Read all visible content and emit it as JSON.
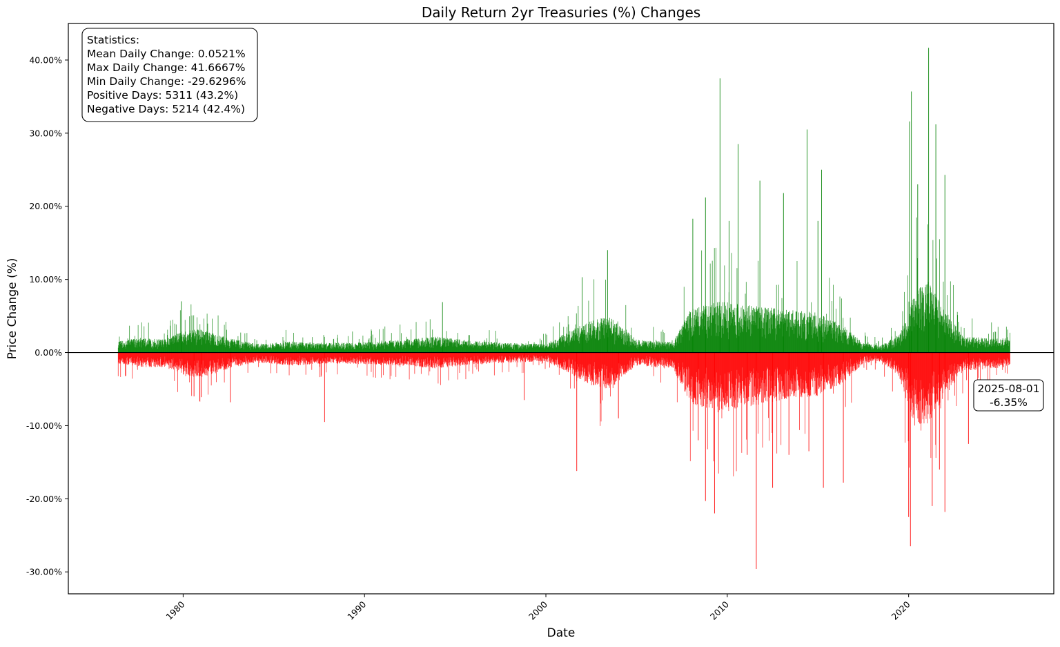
{
  "chart_data": {
    "type": "bar",
    "title": "Daily Return 2yr Treasuries (%) Changes",
    "xlabel": "Date",
    "ylabel": "Price Change (%)",
    "x_range": [
      "1973-09-01",
      "2028-01-01"
    ],
    "ylim": [
      -33.0,
      45.0
    ],
    "x_ticks": [
      "1980",
      "1990",
      "2000",
      "2010",
      "2020"
    ],
    "y_ticks": [
      {
        "value": 40,
        "label": "40.00%"
      },
      {
        "value": 30,
        "label": "30.00%"
      },
      {
        "value": 20,
        "label": "20.00%"
      },
      {
        "value": 10,
        "label": "10.00%"
      },
      {
        "value": 0,
        "label": "0.00%"
      },
      {
        "value": -10,
        "label": "-10.00%"
      },
      {
        "value": -20,
        "label": "-20.00%"
      },
      {
        "value": -30,
        "label": "-30.00%"
      }
    ],
    "grid": false,
    "zero_line": true,
    "positive_color": "#008000",
    "negative_color": "#ff0000",
    "data_start": "1976-06-01",
    "data_end": "2025-08-01",
    "envelope": [
      {
        "year": 1976.4,
        "up": 1.5,
        "down": 1.5
      },
      {
        "year": 1977.5,
        "up": 2.0,
        "down": 2.0
      },
      {
        "year": 1979.0,
        "up": 1.8,
        "down": 2.0
      },
      {
        "year": 1980.0,
        "up": 3.0,
        "down": 3.2
      },
      {
        "year": 1981.0,
        "up": 3.2,
        "down": 3.5
      },
      {
        "year": 1982.5,
        "up": 2.0,
        "down": 2.2
      },
      {
        "year": 1984.0,
        "up": 1.2,
        "down": 1.4
      },
      {
        "year": 1986.0,
        "up": 1.5,
        "down": 1.8
      },
      {
        "year": 1988.0,
        "up": 1.3,
        "down": 1.5
      },
      {
        "year": 1990.0,
        "up": 1.4,
        "down": 1.6
      },
      {
        "year": 1992.0,
        "up": 1.8,
        "down": 1.8
      },
      {
        "year": 1994.0,
        "up": 2.2,
        "down": 2.2
      },
      {
        "year": 1996.0,
        "up": 1.6,
        "down": 1.6
      },
      {
        "year": 1998.0,
        "up": 1.3,
        "down": 1.4
      },
      {
        "year": 2000.0,
        "up": 1.2,
        "down": 1.2
      },
      {
        "year": 2001.0,
        "up": 2.5,
        "down": 2.5
      },
      {
        "year": 2002.5,
        "up": 4.5,
        "down": 4.5
      },
      {
        "year": 2003.5,
        "up": 5.0,
        "down": 5.0
      },
      {
        "year": 2005.0,
        "up": 1.8,
        "down": 1.8
      },
      {
        "year": 2007.0,
        "up": 1.4,
        "down": 2.2
      },
      {
        "year": 2008.0,
        "up": 6.0,
        "down": 7.0
      },
      {
        "year": 2009.5,
        "up": 7.0,
        "down": 8.0
      },
      {
        "year": 2011.0,
        "up": 6.5,
        "down": 7.5
      },
      {
        "year": 2013.0,
        "up": 6.0,
        "down": 6.5
      },
      {
        "year": 2015.0,
        "up": 5.5,
        "down": 6.0
      },
      {
        "year": 2016.5,
        "up": 3.5,
        "down": 4.0
      },
      {
        "year": 2017.5,
        "up": 1.3,
        "down": 1.5
      },
      {
        "year": 2018.5,
        "up": 1.0,
        "down": 1.2
      },
      {
        "year": 2019.5,
        "up": 2.5,
        "down": 3.5
      },
      {
        "year": 2020.3,
        "up": 8.0,
        "down": 10.0
      },
      {
        "year": 2021.0,
        "up": 10.0,
        "down": 10.0
      },
      {
        "year": 2022.0,
        "up": 6.0,
        "down": 6.0
      },
      {
        "year": 2023.0,
        "up": 2.2,
        "down": 2.5
      },
      {
        "year": 2025.6,
        "up": 1.8,
        "down": 2.0
      }
    ],
    "spikes": [
      {
        "year": 1979.9,
        "value": 7.0
      },
      {
        "year": 1980.6,
        "value": -6.0
      },
      {
        "year": 1981.0,
        "value": -6.1
      },
      {
        "year": 1982.6,
        "value": -6.8
      },
      {
        "year": 1987.8,
        "value": -9.5
      },
      {
        "year": 1994.3,
        "value": 6.9
      },
      {
        "year": 1998.8,
        "value": -6.5
      },
      {
        "year": 2001.7,
        "value": -16.2
      },
      {
        "year": 2002.0,
        "value": 10.3
      },
      {
        "year": 2003.4,
        "value": 14.0
      },
      {
        "year": 2004.0,
        "value": -9.0
      },
      {
        "year": 2008.1,
        "value": 18.3
      },
      {
        "year": 2008.4,
        "value": -12.0
      },
      {
        "year": 2008.8,
        "value": -20.3
      },
      {
        "year": 2008.8,
        "value": 21.2
      },
      {
        "year": 2009.3,
        "value": -22.0
      },
      {
        "year": 2009.6,
        "value": 37.5
      },
      {
        "year": 2010.1,
        "value": 18.0
      },
      {
        "year": 2010.6,
        "value": 28.5
      },
      {
        "year": 2011.1,
        "value": -14.0
      },
      {
        "year": 2011.6,
        "value": -29.6
      },
      {
        "year": 2011.8,
        "value": 23.5
      },
      {
        "year": 2012.5,
        "value": -18.5
      },
      {
        "year": 2013.1,
        "value": 21.8
      },
      {
        "year": 2013.4,
        "value": -14.0
      },
      {
        "year": 2014.4,
        "value": 30.5
      },
      {
        "year": 2014.5,
        "value": -13.5
      },
      {
        "year": 2015.0,
        "value": 18.0
      },
      {
        "year": 2015.2,
        "value": 25.0
      },
      {
        "year": 2015.3,
        "value": -18.5
      },
      {
        "year": 2016.4,
        "value": -17.8
      },
      {
        "year": 2020.0,
        "value": -22.5
      },
      {
        "year": 2020.15,
        "value": 35.7
      },
      {
        "year": 2020.1,
        "value": -26.5
      },
      {
        "year": 2020.05,
        "value": 31.6
      },
      {
        "year": 2020.5,
        "value": 23.0
      },
      {
        "year": 2021.1,
        "value": 41.67
      },
      {
        "year": 2021.3,
        "value": -21.0
      },
      {
        "year": 2021.5,
        "value": 31.2
      },
      {
        "year": 2021.7,
        "value": -16.0
      },
      {
        "year": 2022.0,
        "value": 24.3
      },
      {
        "year": 2022.0,
        "value": -21.8
      },
      {
        "year": 2023.3,
        "value": -12.5
      }
    ]
  },
  "stats_box": {
    "lines": [
      "Statistics:",
      "Mean Daily Change: 0.0521%",
      "Max Daily Change: 41.6667%",
      "Min Daily Change: -29.6296%",
      "Positive Days: 5311 (43.2%)",
      "Negative Days: 5214 (42.4%)"
    ]
  },
  "last_point_annotation": {
    "date": "2025-08-01",
    "value_label": "-6.35%"
  }
}
